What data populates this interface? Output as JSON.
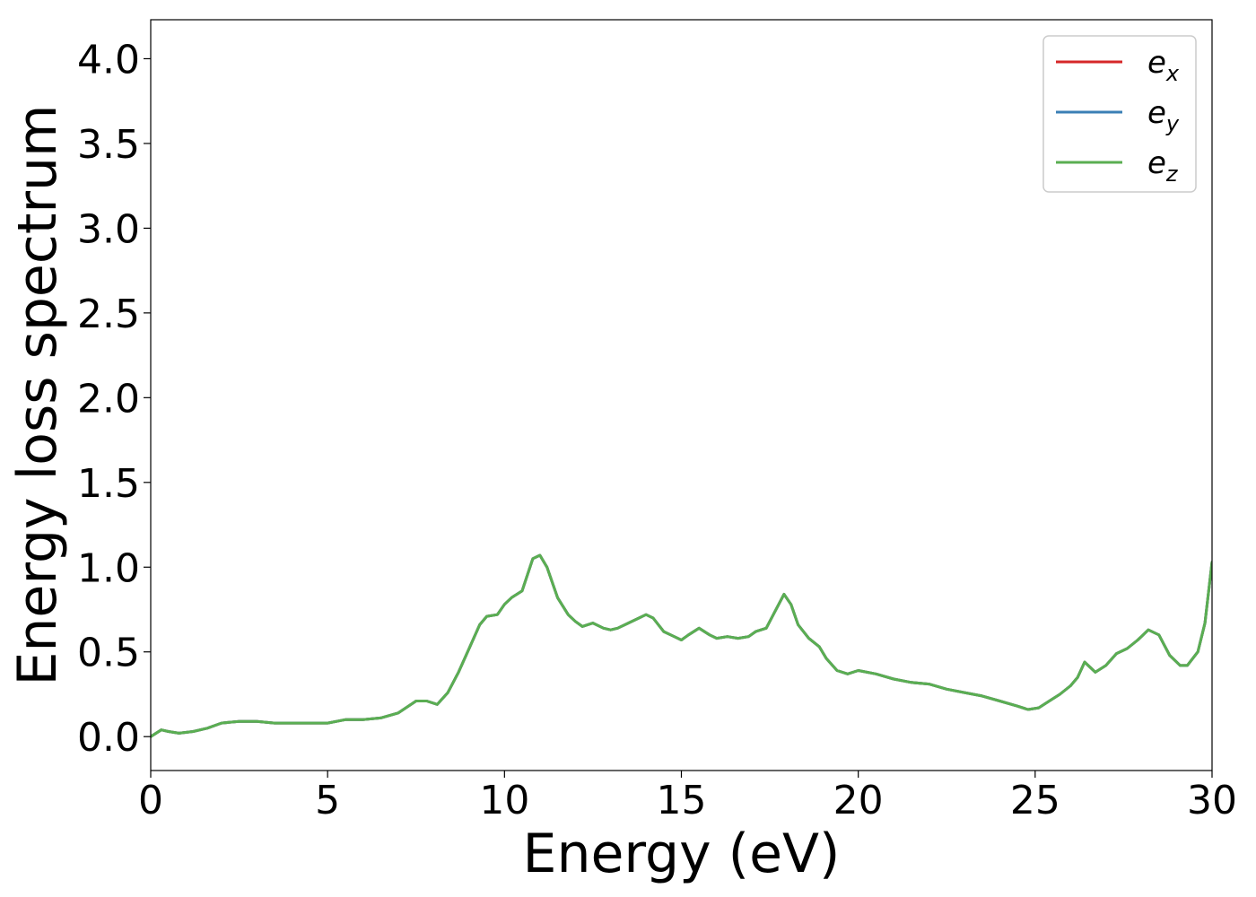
{
  "chart_data": {
    "type": "line",
    "title": "",
    "xlabel": "Energy (eV)",
    "ylabel": "Energy loss spectrum",
    "xlim": [
      0,
      30
    ],
    "ylim": [
      -0.2,
      4.23
    ],
    "xticks": [
      0,
      5,
      10,
      15,
      20,
      25,
      30
    ],
    "xtick_labels": [
      "0",
      "5",
      "10",
      "15",
      "20",
      "25",
      "30"
    ],
    "yticks": [
      0.0,
      0.5,
      1.0,
      1.5,
      2.0,
      2.5,
      3.0,
      3.5,
      4.0
    ],
    "ytick_labels": [
      "0.0",
      "0.5",
      "1.0",
      "1.5",
      "2.0",
      "2.5",
      "3.0",
      "3.5",
      "4.0"
    ],
    "grid": false,
    "legend_position": "top-right",
    "x": [
      0,
      0.3,
      0.5,
      0.8,
      1.2,
      1.6,
      2.0,
      2.5,
      3.0,
      3.5,
      4.0,
      4.5,
      5.0,
      5.5,
      6.0,
      6.5,
      7.0,
      7.5,
      7.8,
      8.1,
      8.4,
      8.7,
      9.0,
      9.3,
      9.5,
      9.8,
      10.0,
      10.2,
      10.5,
      10.8,
      11.0,
      11.2,
      11.5,
      11.8,
      12.0,
      12.2,
      12.5,
      12.8,
      13.0,
      13.2,
      13.5,
      13.8,
      14.0,
      14.2,
      14.5,
      14.8,
      15.0,
      15.2,
      15.5,
      15.8,
      16.0,
      16.3,
      16.6,
      16.9,
      17.1,
      17.4,
      17.6,
      17.9,
      18.1,
      18.3,
      18.6,
      18.9,
      19.1,
      19.4,
      19.7,
      20.0,
      20.5,
      21.0,
      21.5,
      22.0,
      22.5,
      23.0,
      23.5,
      24.0,
      24.5,
      24.8,
      25.1,
      25.4,
      25.7,
      26.0,
      26.2,
      26.4,
      26.7,
      27.0,
      27.3,
      27.6,
      27.9,
      28.2,
      28.5,
      28.8,
      29.1,
      29.3,
      29.6,
      29.8,
      30.0
    ],
    "series": [
      {
        "name": "e",
        "subscript": "x",
        "color": "#d62728",
        "values": [
          0.0,
          0.04,
          0.03,
          0.02,
          0.03,
          0.05,
          0.08,
          0.09,
          0.09,
          0.08,
          0.08,
          0.08,
          0.08,
          0.1,
          0.1,
          0.11,
          0.14,
          0.21,
          0.21,
          0.19,
          0.26,
          0.38,
          0.52,
          0.66,
          0.71,
          0.72,
          0.78,
          0.82,
          0.86,
          1.05,
          1.07,
          1.0,
          0.82,
          0.72,
          0.68,
          0.65,
          0.67,
          0.64,
          0.63,
          0.64,
          0.67,
          0.7,
          0.72,
          0.7,
          0.62,
          0.59,
          0.57,
          0.6,
          0.64,
          0.6,
          0.58,
          0.59,
          0.58,
          0.59,
          0.62,
          0.64,
          0.72,
          0.84,
          0.78,
          0.66,
          0.58,
          0.53,
          0.46,
          0.39,
          0.37,
          0.39,
          0.37,
          0.34,
          0.32,
          0.31,
          0.28,
          0.26,
          0.24,
          0.21,
          0.18,
          0.16,
          0.17,
          0.21,
          0.25,
          0.3,
          0.35,
          0.44,
          0.38,
          0.42,
          0.49,
          0.52,
          0.57,
          0.63,
          0.6,
          0.48,
          0.42,
          0.42,
          0.5,
          0.67,
          1.03
        ]
      },
      {
        "name": "e",
        "subscript": "y",
        "color": "#3b7fb5",
        "values": [
          0.0,
          0.04,
          0.03,
          0.02,
          0.03,
          0.05,
          0.08,
          0.09,
          0.09,
          0.08,
          0.08,
          0.08,
          0.08,
          0.1,
          0.1,
          0.11,
          0.14,
          0.21,
          0.21,
          0.19,
          0.26,
          0.38,
          0.52,
          0.66,
          0.71,
          0.72,
          0.78,
          0.82,
          0.86,
          1.05,
          1.07,
          1.0,
          0.82,
          0.72,
          0.68,
          0.65,
          0.67,
          0.64,
          0.63,
          0.64,
          0.67,
          0.7,
          0.72,
          0.7,
          0.62,
          0.59,
          0.57,
          0.6,
          0.64,
          0.6,
          0.58,
          0.59,
          0.58,
          0.59,
          0.62,
          0.64,
          0.72,
          0.84,
          0.78,
          0.66,
          0.58,
          0.53,
          0.46,
          0.39,
          0.37,
          0.39,
          0.37,
          0.34,
          0.32,
          0.31,
          0.28,
          0.26,
          0.24,
          0.21,
          0.18,
          0.16,
          0.17,
          0.21,
          0.25,
          0.3,
          0.35,
          0.44,
          0.38,
          0.42,
          0.49,
          0.52,
          0.57,
          0.63,
          0.6,
          0.48,
          0.42,
          0.42,
          0.5,
          0.67,
          1.03
        ]
      },
      {
        "name": "e",
        "subscript": "z",
        "color": "#5aae52",
        "values": [
          0.0,
          0.04,
          0.03,
          0.02,
          0.03,
          0.05,
          0.08,
          0.09,
          0.09,
          0.08,
          0.08,
          0.08,
          0.08,
          0.1,
          0.1,
          0.11,
          0.14,
          0.21,
          0.21,
          0.19,
          0.26,
          0.38,
          0.52,
          0.66,
          0.71,
          0.72,
          0.78,
          0.82,
          0.86,
          1.05,
          1.07,
          1.0,
          0.82,
          0.72,
          0.68,
          0.65,
          0.67,
          0.64,
          0.63,
          0.64,
          0.67,
          0.7,
          0.72,
          0.7,
          0.62,
          0.59,
          0.57,
          0.6,
          0.64,
          0.6,
          0.58,
          0.59,
          0.58,
          0.59,
          0.62,
          0.64,
          0.72,
          0.84,
          0.78,
          0.66,
          0.58,
          0.53,
          0.46,
          0.39,
          0.37,
          0.39,
          0.37,
          0.34,
          0.32,
          0.31,
          0.28,
          0.26,
          0.24,
          0.21,
          0.18,
          0.16,
          0.17,
          0.21,
          0.25,
          0.3,
          0.35,
          0.44,
          0.38,
          0.42,
          0.49,
          0.52,
          0.57,
          0.63,
          0.6,
          0.48,
          0.42,
          0.42,
          0.5,
          0.67,
          1.03
        ]
      }
    ]
  }
}
